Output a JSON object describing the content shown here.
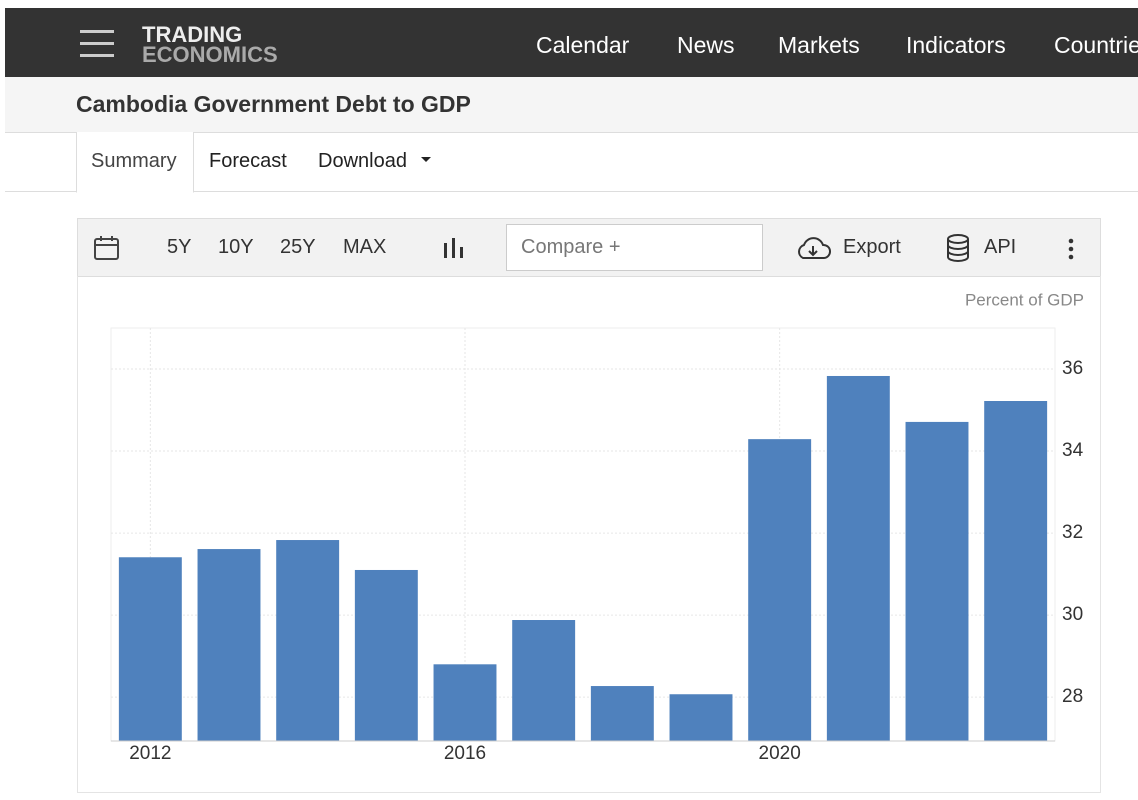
{
  "header": {
    "logo": [
      "TRADING",
      "ECONOMICS"
    ],
    "menu": [
      "Calendar",
      "News",
      "Markets",
      "Indicators",
      "Countries"
    ]
  },
  "page_title": "Cambodia Government Debt to GDP",
  "tabs": [
    "Summary",
    "Forecast",
    "Download"
  ],
  "toolbar": {
    "ranges": [
      "5Y",
      "10Y",
      "25Y",
      "MAX"
    ],
    "compare": "Compare +",
    "export": "Export",
    "api": "API"
  },
  "chart_data": {
    "type": "bar",
    "unit_label": "Percent of GDP",
    "categories": [
      "2012",
      null,
      null,
      null,
      "2016",
      null,
      null,
      null,
      "2020",
      null,
      null,
      null
    ],
    "values": [
      31.41,
      31.61,
      31.83,
      31.1,
      28.8,
      29.88,
      28.27,
      28.07,
      34.29,
      35.83,
      34.71,
      35.22
    ],
    "color": "#4f81bd",
    "ylim": [
      26.93,
      37
    ],
    "yticks": [
      28,
      30,
      32,
      34,
      36
    ],
    "grid": true
  }
}
